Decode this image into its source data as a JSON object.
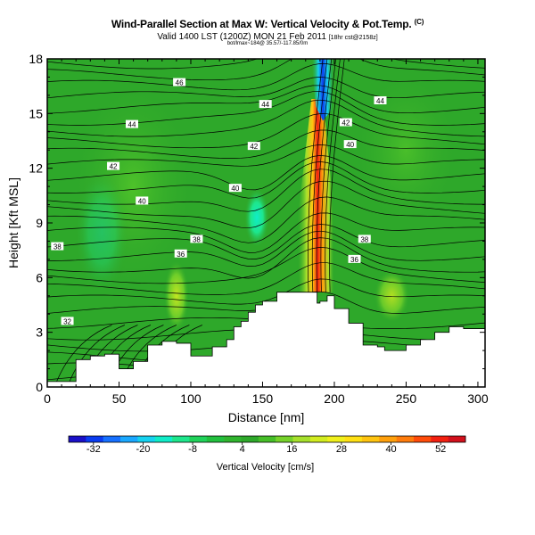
{
  "header": {
    "title": "Wind-Parallel Section at Max W: Vertical Velocity & Pot.Temp.",
    "title_mark": "(C)",
    "subtitle": "Valid 1400 LST (1200Z) MON 21 Feb 2011",
    "subtitle_note": "[18hr cst@2158z]",
    "subtitle2": "bot/lmax~184@ 35.57/-117.85/0m"
  },
  "chart_data": {
    "type": "heatmap",
    "xlabel": "Distance [nm]",
    "ylabel": "Height [Kft MSL]",
    "xlim": [
      0,
      305
    ],
    "ylim": [
      0,
      18
    ],
    "x_ticks": [
      0,
      50,
      100,
      150,
      200,
      250,
      300
    ],
    "y_ticks": [
      0,
      3,
      6,
      9,
      12,
      15,
      18
    ],
    "terrain": {
      "x": [
        0,
        10,
        20,
        30,
        40,
        50,
        60,
        65,
        70,
        80,
        90,
        95,
        100,
        110,
        115,
        120,
        125,
        130,
        135,
        140,
        145,
        150,
        160,
        170,
        180,
        185,
        188,
        190,
        195,
        200,
        210,
        220,
        230,
        235,
        240,
        250,
        260,
        270,
        280,
        290,
        300,
        305
      ],
      "y": [
        0.3,
        0.3,
        1.5,
        1.7,
        1.8,
        1.0,
        1.4,
        1.4,
        2.3,
        2.5,
        2.4,
        2.4,
        1.7,
        1.7,
        2.2,
        2.2,
        2.6,
        3.3,
        3.6,
        4.1,
        4.5,
        4.7,
        5.2,
        5.2,
        5.2,
        5.2,
        4.6,
        4.7,
        5.0,
        4.3,
        3.5,
        2.3,
        2.2,
        2.0,
        2.0,
        2.3,
        2.6,
        3.0,
        3.3,
        3.2,
        3.2,
        3.2
      ]
    },
    "series": [
      {
        "name": "Vertical Velocity",
        "updraft_center_x": 190,
        "updraft_max": 52,
        "downdraft_min": -32
      }
    ],
    "theta_contours": [
      {
        "label": "32",
        "x": 14,
        "y": 3.6
      },
      {
        "label": "36",
        "x": 93,
        "y": 7.3
      },
      {
        "label": "38",
        "x": 104,
        "y": 8.1
      },
      {
        "label": "36",
        "x": 214,
        "y": 7.0
      },
      {
        "label": "38",
        "x": 221,
        "y": 8.1
      },
      {
        "label": "38",
        "x": 7,
        "y": 7.7
      },
      {
        "label": "40",
        "x": 66,
        "y": 10.2
      },
      {
        "label": "40",
        "x": 131,
        "y": 10.9
      },
      {
        "label": "40",
        "x": 211,
        "y": 13.3
      },
      {
        "label": "42",
        "x": 46,
        "y": 12.1
      },
      {
        "label": "42",
        "x": 144,
        "y": 13.2
      },
      {
        "label": "42",
        "x": 208,
        "y": 14.5
      },
      {
        "label": "44",
        "x": 59,
        "y": 14.4
      },
      {
        "label": "44",
        "x": 152,
        "y": 15.5
      },
      {
        "label": "44",
        "x": 232,
        "y": 15.7
      },
      {
        "label": "46",
        "x": 92,
        "y": 16.7
      }
    ],
    "colorbar": {
      "label": "Vertical Velocity [cm/s]",
      "ticks": [
        -32,
        -20,
        -8,
        4,
        16,
        28,
        40,
        52
      ],
      "colors": [
        "#1a10c8",
        "#0a3cf0",
        "#1670ff",
        "#1aa8ff",
        "#16d2f0",
        "#10ecc8",
        "#1ee68c",
        "#20d25a",
        "#22c03e",
        "#30b42e",
        "#2ea82a",
        "#46be28",
        "#76d22a",
        "#a6e02c",
        "#d2ec20",
        "#f0f01c",
        "#ffe014",
        "#ffc410",
        "#ffa00c",
        "#ff7c0c",
        "#ff4c0a",
        "#f22010",
        "#d2101c"
      ]
    }
  }
}
